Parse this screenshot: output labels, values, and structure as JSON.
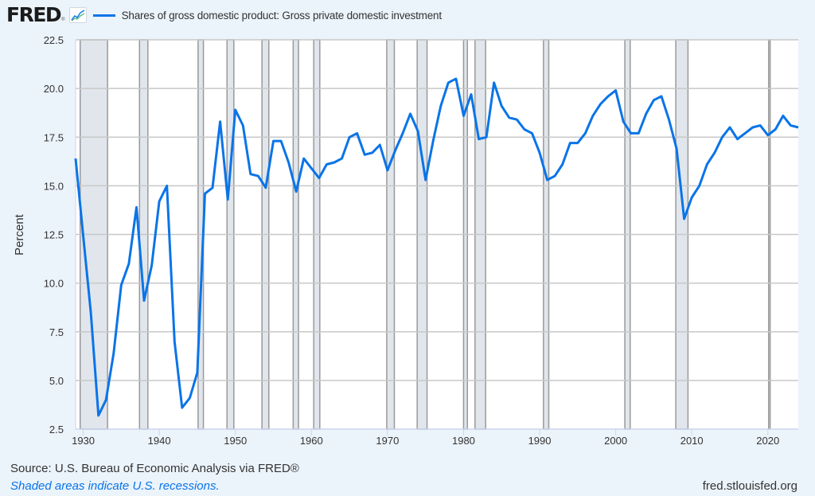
{
  "header": {
    "logo_text": "FRED",
    "logo_reg": "®",
    "series_title": "Shares of gross domestic product: Gross private domestic investment"
  },
  "footer": {
    "source": "Source: U.S. Bureau of Economic Analysis via FRED®",
    "shaded_note": "Shaded areas indicate U.S. recessions.",
    "url": "fred.stlouisfed.org"
  },
  "colors": {
    "line": "#0a74e8",
    "recession": "#e1e6ec",
    "background": "#ebf3fb",
    "plot_background": "#ffffff",
    "grid": "#c8c8c8"
  },
  "chart_data": {
    "type": "line",
    "title": "Shares of gross domestic product: Gross private domestic investment",
    "xlabel": "",
    "ylabel": "Percent",
    "xlim": [
      1929,
      2024
    ],
    "ylim": [
      2.5,
      22.5
    ],
    "grid": true,
    "legend_position": "top-left",
    "y_ticks": [
      "2.5",
      "5.0",
      "7.5",
      "10.0",
      "12.5",
      "15.0",
      "17.5",
      "20.0",
      "22.5"
    ],
    "x_ticks": [
      "1930",
      "1940",
      "1950",
      "1960",
      "1970",
      "1980",
      "1990",
      "2000",
      "2010",
      "2020"
    ],
    "x": [
      1929,
      1930,
      1931,
      1932,
      1933,
      1934,
      1935,
      1936,
      1937,
      1938,
      1939,
      1940,
      1941,
      1942,
      1943,
      1944,
      1945,
      1946,
      1947,
      1948,
      1949,
      1950,
      1951,
      1952,
      1953,
      1954,
      1955,
      1956,
      1957,
      1958,
      1959,
      1960,
      1961,
      1962,
      1963,
      1964,
      1965,
      1966,
      1967,
      1968,
      1969,
      1970,
      1971,
      1972,
      1973,
      1974,
      1975,
      1976,
      1977,
      1978,
      1979,
      1980,
      1981,
      1982,
      1983,
      1984,
      1985,
      1986,
      1987,
      1988,
      1989,
      1990,
      1991,
      1992,
      1993,
      1994,
      1995,
      1996,
      1997,
      1998,
      1999,
      2000,
      2001,
      2002,
      2003,
      2004,
      2005,
      2006,
      2007,
      2008,
      2009,
      2010,
      2011,
      2012,
      2013,
      2014,
      2015,
      2016,
      2017,
      2018,
      2019,
      2020,
      2021,
      2022,
      2023,
      2024
    ],
    "series": [
      {
        "name": "Shares of gross domestic product: Gross private domestic investment",
        "values": [
          16.4,
          12.4,
          8.5,
          3.2,
          4.0,
          6.4,
          9.9,
          11.0,
          13.9,
          9.1,
          10.9,
          14.2,
          15.0,
          7.0,
          3.6,
          4.1,
          5.4,
          14.6,
          14.9,
          18.3,
          14.3,
          18.9,
          18.1,
          15.6,
          15.5,
          14.9,
          17.3,
          17.3,
          16.2,
          14.7,
          16.4,
          15.9,
          15.4,
          16.1,
          16.2,
          16.4,
          17.5,
          17.7,
          16.6,
          16.7,
          17.1,
          15.8,
          16.8,
          17.7,
          18.7,
          17.8,
          15.3,
          17.3,
          19.1,
          20.3,
          20.5,
          18.6,
          19.7,
          17.4,
          17.5,
          20.3,
          19.1,
          18.5,
          18.4,
          17.9,
          17.7,
          16.7,
          15.3,
          15.5,
          16.1,
          17.2,
          17.2,
          17.7,
          18.6,
          19.2,
          19.6,
          19.9,
          18.3,
          17.7,
          17.7,
          18.7,
          19.4,
          19.6,
          18.4,
          16.9,
          13.3,
          14.4,
          15.0,
          16.1,
          16.7,
          17.5,
          18.0,
          17.4,
          17.7,
          18.0,
          18.1,
          17.6,
          17.9,
          18.6,
          18.1,
          18.0
        ]
      }
    ],
    "recessions": [
      [
        1929.6,
        1933.2
      ],
      [
        1937.4,
        1938.5
      ],
      [
        1945.1,
        1945.8
      ],
      [
        1948.9,
        1949.8
      ],
      [
        1953.5,
        1954.4
      ],
      [
        1957.6,
        1958.3
      ],
      [
        1960.3,
        1961.1
      ],
      [
        1969.9,
        1970.9
      ],
      [
        1973.9,
        1975.2
      ],
      [
        1980.0,
        1980.5
      ],
      [
        1981.5,
        1982.9
      ],
      [
        1990.5,
        1991.2
      ],
      [
        2001.2,
        2001.9
      ],
      [
        2007.9,
        2009.5
      ],
      [
        2020.1,
        2020.3
      ]
    ]
  }
}
